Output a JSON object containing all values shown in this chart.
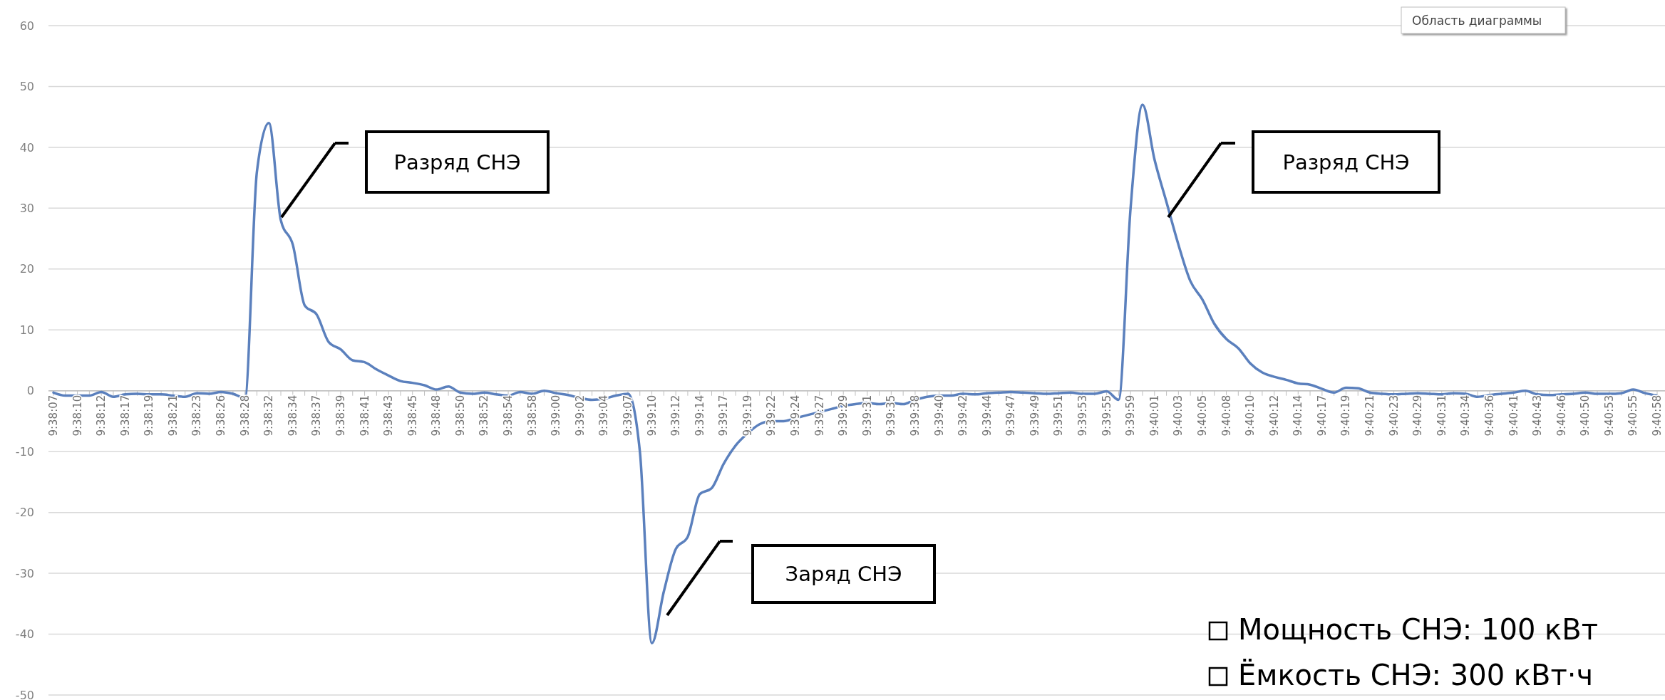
{
  "chart_data": {
    "type": "line",
    "categories": [
      "9:38:07",
      null,
      "9:38:10",
      null,
      "9:38:12",
      null,
      "9:38:17",
      null,
      "9:38:19",
      null,
      "9:38:21",
      null,
      "9:38:23",
      null,
      "9:38:26",
      null,
      "9:38:28",
      null,
      "9:38:32",
      null,
      "9:38:34",
      null,
      "9:38:37",
      null,
      "9:38:39",
      null,
      "9:38:41",
      null,
      "9:38:43",
      null,
      "9:38:45",
      null,
      "9:38:48",
      null,
      "9:38:50",
      null,
      "9:38:52",
      null,
      "9:38:54",
      null,
      "9:38:58",
      null,
      "9:39:00",
      null,
      "9:39:02",
      null,
      "9:39:04",
      null,
      "9:39:07",
      null,
      "9:39:10",
      null,
      "9:39:12",
      null,
      "9:39:14",
      null,
      "9:39:17",
      null,
      "9:39:19",
      null,
      "9:39:22",
      null,
      "9:39:24",
      null,
      "9:39:27",
      null,
      "9:39:29",
      null,
      "9:39:31",
      null,
      "9:39:35",
      null,
      "9:39:38",
      null,
      "9:39:40",
      null,
      "9:39:42",
      null,
      "9:39:44",
      null,
      "9:39:47",
      null,
      "9:39:49",
      null,
      "9:39:51",
      null,
      "9:39:53",
      null,
      "9:39:55",
      null,
      "9:39:59",
      null,
      "9:40:01",
      null,
      "9:40:03",
      null,
      "9:40:05",
      null,
      "9:40:08",
      null,
      "9:40:10",
      null,
      "9:40:12",
      null,
      "9:40:14",
      null,
      "9:40:17",
      null,
      "9:40:19",
      null,
      "9:40:21",
      null,
      "9:40:23",
      null,
      "9:40:29",
      null,
      "9:40:31",
      null,
      "9:40:34",
      null,
      "9:40:36",
      null,
      "9:40:41",
      null,
      "9:40:43",
      null,
      "9:40:46",
      null,
      "9:40:50",
      null,
      "9:40:53",
      null,
      "9:40:55",
      null,
      "9:40:58"
    ],
    "series": [
      {
        "color": "#5b80bd",
        "values": [
          -0.3,
          -0.8,
          -0.8,
          -0.8,
          -0.2,
          -1,
          -0.6,
          -0.5,
          -0.6,
          -0.6,
          -0.8,
          -1,
          -0.4,
          -0.5,
          -0.2,
          -0.5,
          -1.2,
          36,
          44,
          28,
          24,
          14,
          12.5,
          8,
          6.8,
          5,
          4.7,
          3.5,
          2.5,
          1.6,
          1.3,
          0.9,
          0.2,
          0.7,
          -0.3,
          -0.5,
          -0.3,
          -0.6,
          -0.8,
          -0.2,
          -0.5,
          0,
          -0.4,
          -0.7,
          -1.2,
          -1.5,
          -1.3,
          -0.8,
          -0.5,
          -10,
          -41.5,
          -33,
          -26,
          -24,
          -17,
          -16,
          -12,
          -9,
          -7,
          -5.5,
          -5,
          -5,
          -4.5,
          -4,
          -3.5,
          -3,
          -2.5,
          -2.2,
          -2,
          -2.2,
          -2,
          -2.2,
          -1.5,
          -1,
          -0.8,
          -0.8,
          -0.5,
          -0.6,
          -0.4,
          -0.3,
          -0.2,
          -0.3,
          -0.4,
          -0.5,
          -0.4,
          -0.3,
          -0.5,
          -0.5,
          -0.1,
          -1.5,
          30,
          47,
          38,
          31,
          24,
          18,
          15,
          11,
          8.5,
          7,
          4.5,
          3,
          2.3,
          1.8,
          1.2,
          1,
          0.3,
          -0.3,
          0.5,
          0.4,
          -0.3,
          -0.5,
          -0.6,
          -0.5,
          -0.4,
          -0.5,
          -0.6,
          -0.4,
          -0.5,
          -1,
          -0.7,
          -0.5,
          -0.3,
          0,
          -0.6,
          -0.7,
          -0.6,
          -0.5,
          -0.3,
          -0.5,
          -0.5,
          -0.4,
          0.2,
          -0.4,
          -0.8
        ]
      }
    ],
    "ylim": [
      -50,
      60
    ],
    "yticks": [
      -50,
      -40,
      -30,
      -20,
      -10,
      0,
      10,
      20,
      30,
      40,
      50,
      60
    ],
    "grid": "y",
    "annotations": [
      "Разряд СНЭ",
      "Разряд СНЭ",
      "Заряд СНЭ",
      "Мощность СНЭ: 100 кВт",
      "Ёмкость СНЭ: 300 кВт·ч",
      "Область диаграммы"
    ]
  }
}
